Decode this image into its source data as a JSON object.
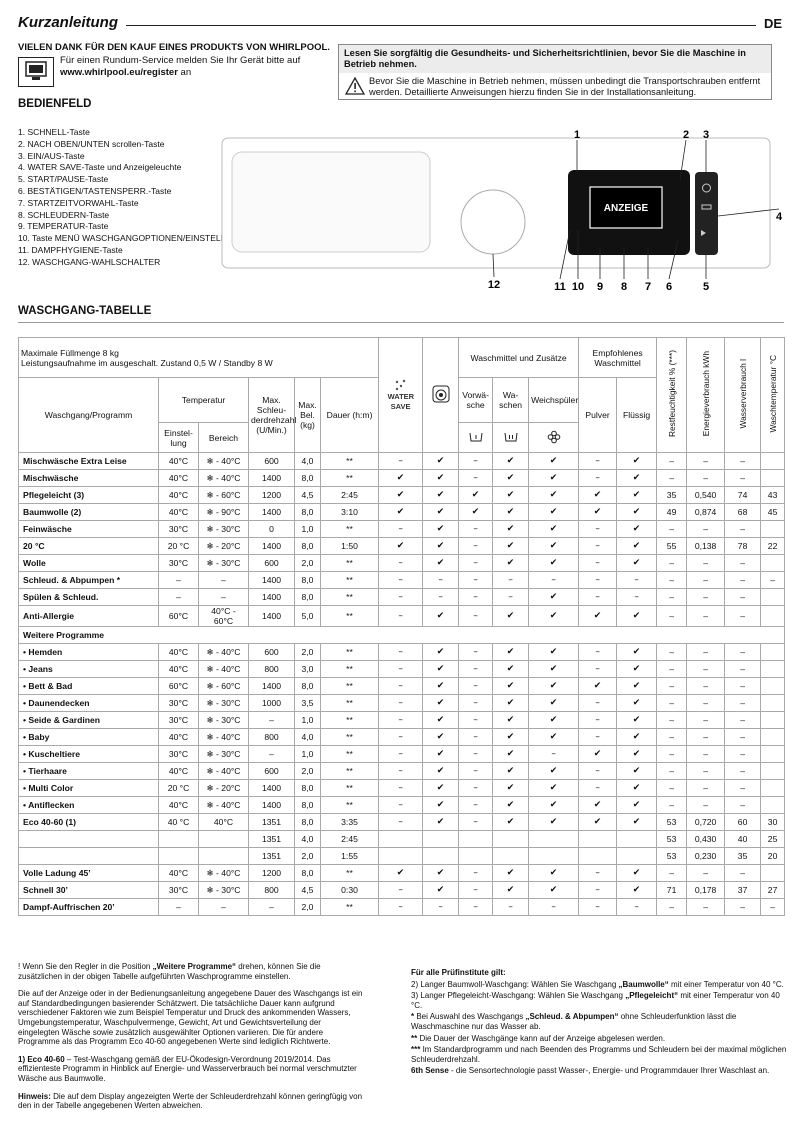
{
  "header": {
    "title": "Kurzanleitung",
    "lang": "DE"
  },
  "intro": {
    "thanks": "VIELEN DANK FÜR DEN KAUF EINES PRODUKTS VON WHIRLPOOL.",
    "register_text": "Für einen Rundum-Service melden Sie Ihr Gerät bitte auf",
    "register_url": "www.whirlpool.eu/register",
    "register_suffix": "an"
  },
  "safety": {
    "heading": "Lesen Sie sorgfältig die Gesundheits- und Sicherheitsrichtlinien, bevor Sie die Maschine in Betrieb nehmen.",
    "text": "Bevor Sie die Maschine in Betrieb nehmen, müssen unbedingt die Transportschrauben entfernt werden. Detaillierte Anweisungen hierzu finden Sie in der Installationsanleitung."
  },
  "controls": {
    "title": "BEDIENFELD",
    "items": [
      "1. SCHNELL-Taste",
      "2. NACH OBEN/UNTEN scrollen-Taste",
      "3. EIN/AUS-Taste",
      "4. WATER SAVE-Taste und Anzeigeleuchte",
      "5. START/PAUSE-Taste",
      "6. BESTÄTIGEN/TASTENSPERR.-Taste",
      "7. STARTZEITVORWAHL-Taste",
      "8. SCHLEUDERN-Taste",
      "9. TEMPERATUR-Taste",
      "10. Taste MENÜ WASCHGANGOPTIONEN/EINSTELLUNGEN",
      "11. DAMPFHYGIENE-Taste",
      "12. WASCHGANG-WAHLSCHALTER"
    ]
  },
  "panel": {
    "display": "ANZEIGE",
    "callouts": [
      "1",
      "2",
      "3",
      "4",
      "5",
      "6",
      "7",
      "8",
      "9",
      "10",
      "11",
      "12"
    ]
  },
  "table": {
    "title": "WASCHGANG-TABELLE",
    "header": {
      "max_load": "Maximale Füllmenge 8 kg",
      "power": "Leistungsaufnahme im ausgeschalt. Zustand 0,5 W / Standby 8 W",
      "program": "Waschgang/Programm",
      "temperature": "Temperatur",
      "setting": "Einstel-lung",
      "range": "Bereich",
      "spin": "Max. Schleu-derdrehzahl (U/Min.)",
      "load": "Max. Bel. (kg)",
      "duration": "Dauer (h:m)",
      "water_save": "WATER SAVE",
      "detergents": "Waschmittel und Zusätze",
      "prewash": "Vorwä-sche",
      "wash": "Wa-schen",
      "softener": "Weichspüler",
      "recommended": "Empfohlenes Waschmittel",
      "powder": "Pulver",
      "liquid": "Flüssig",
      "moisture": "Restfeuchtigkeit % (***)",
      "energy": "Energieverbrauch kWh",
      "water": "Wasserverbrauch l",
      "wash_temp": "Waschtemperatur °C"
    },
    "rows": [
      [
        "Mischwäsche Extra Leise",
        "40°C",
        "❄ - 40°C",
        "600",
        "4,0",
        "**",
        "–",
        "✔",
        "–",
        "✔",
        "✔",
        "–",
        "✔",
        "–",
        "–",
        "–",
        null
      ],
      [
        "Mischwäsche",
        "40°C",
        "❄ - 40°C",
        "1400",
        "8,0",
        "**",
        "✔",
        "✔",
        "–",
        "✔",
        "✔",
        "–",
        "✔",
        "–",
        "–",
        "–",
        null
      ],
      [
        "Pflegeleicht (3)",
        "40°C",
        "❄ - 60°C",
        "1200",
        "4,5",
        "2:45",
        "✔",
        "✔",
        "✔",
        "✔",
        "✔",
        "✔",
        "✔",
        "35",
        "0,540",
        "74",
        "43"
      ],
      [
        "Baumwolle (2)",
        "40°C",
        "❄ - 90°C",
        "1400",
        "8,0",
        "3:10",
        "✔",
        "✔",
        "✔",
        "✔",
        "✔",
        "✔",
        "✔",
        "49",
        "0,874",
        "68",
        "45"
      ],
      [
        "Feinwäsche",
        "30°C",
        "❄ - 30°C",
        "0",
        "1,0",
        "**",
        "–",
        "✔",
        "–",
        "✔",
        "✔",
        "–",
        "✔",
        "–",
        "–",
        "–",
        null
      ],
      [
        "20 °C",
        "20 °C",
        "❄ - 20°C",
        "1400",
        "8,0",
        "1:50",
        "✔",
        "✔",
        "–",
        "✔",
        "✔",
        "–",
        "✔",
        "55",
        "0,138",
        "78",
        "22"
      ],
      [
        "Wolle",
        "30°C",
        "❄ - 30°C",
        "600",
        "2,0",
        "**",
        "–",
        "✔",
        "–",
        "✔",
        "✔",
        "–",
        "✔",
        "–",
        "–",
        "–",
        null
      ],
      [
        "Schleud. & Abpumpen *",
        "–",
        "–",
        "1400",
        "8,0",
        "**",
        "–",
        "–",
        "–",
        "–",
        "–",
        "–",
        "–",
        "–",
        "–",
        "–",
        "–"
      ],
      [
        "Spülen & Schleud.",
        "–",
        "–",
        "1400",
        "8,0",
        "**",
        "–",
        "–",
        "–",
        "–",
        "✔",
        "–",
        "–",
        "–",
        "–",
        "–",
        null
      ],
      [
        "Anti-Allergie",
        "60°C",
        "40°C - 60°C",
        "1400",
        "5,0",
        "**",
        "–",
        "✔",
        "–",
        "✔",
        "✔",
        "✔",
        "✔",
        "–",
        "–",
        "–",
        null
      ],
      {
        "section": "Weitere Programme"
      },
      [
        "• Hemden",
        "40°C",
        "❄ - 40°C",
        "600",
        "2,0",
        "**",
        "–",
        "✔",
        "–",
        "✔",
        "✔",
        "–",
        "✔",
        "–",
        "–",
        "–",
        null
      ],
      [
        "• Jeans",
        "40°C",
        "❄ - 40°C",
        "800",
        "3,0",
        "**",
        "–",
        "✔",
        "–",
        "✔",
        "✔",
        "–",
        "✔",
        "–",
        "–",
        "–",
        null
      ],
      [
        "• Bett & Bad",
        "60°C",
        "❄ - 60°C",
        "1400",
        "8,0",
        "**",
        "–",
        "✔",
        "–",
        "✔",
        "✔",
        "✔",
        "✔",
        "–",
        "–",
        "–",
        null
      ],
      [
        "• Daunendecken",
        "30°C",
        "❄ - 30°C",
        "1000",
        "3,5",
        "**",
        "–",
        "✔",
        "–",
        "✔",
        "✔",
        "–",
        "✔",
        "–",
        "–",
        "–",
        null
      ],
      [
        "• Seide & Gardinen",
        "30°C",
        "❄ - 30°C",
        "–",
        "1,0",
        "**",
        "–",
        "✔",
        "–",
        "✔",
        "✔",
        "–",
        "✔",
        "–",
        "–",
        "–",
        null
      ],
      [
        "• Baby",
        "40°C",
        "❄ - 40°C",
        "800",
        "4,0",
        "**",
        "–",
        "✔",
        "–",
        "✔",
        "✔",
        "–",
        "✔",
        "–",
        "–",
        "–",
        null
      ],
      [
        "• Kuscheltiere",
        "30°C",
        "❄ - 30°C",
        "–",
        "1,0",
        "**",
        "–",
        "✔",
        "–",
        "✔",
        "–",
        "✔",
        "✔",
        "–",
        "–",
        "–",
        null
      ],
      [
        "• Tierhaare",
        "40°C",
        "❄ - 40°C",
        "600",
        "2,0",
        "**",
        "–",
        "✔",
        "–",
        "✔",
        "✔",
        "–",
        "✔",
        "–",
        "–",
        "–",
        null
      ],
      [
        "• Multi Color",
        "20 °C",
        "❄ - 20°C",
        "1400",
        "8,0",
        "**",
        "–",
        "✔",
        "–",
        "✔",
        "✔",
        "–",
        "✔",
        "–",
        "–",
        "–",
        null
      ],
      [
        "• Antiflecken",
        "40°C",
        "❄ - 40°C",
        "1400",
        "8,0",
        "**",
        "–",
        "✔",
        "–",
        "✔",
        "✔",
        "✔",
        "✔",
        "–",
        "–",
        "–",
        null
      ],
      [
        "Eco 40-60 (1)",
        "40 °C",
        "40°C",
        "1351",
        "8,0",
        "3:35",
        "–",
        "✔",
        "–",
        "✔",
        "✔",
        "✔",
        "✔",
        "53",
        "0,720",
        "60",
        "30"
      ],
      [
        null,
        null,
        null,
        "1351",
        "4,0",
        "2:45",
        null,
        null,
        null,
        null,
        null,
        null,
        null,
        "53",
        "0,430",
        "40",
        "25"
      ],
      [
        null,
        null,
        null,
        "1351",
        "2,0",
        "1:55",
        null,
        null,
        null,
        null,
        null,
        null,
        null,
        "53",
        "0,230",
        "35",
        "20"
      ],
      [
        "Volle Ladung 45’",
        "40°C",
        "❄ - 40°C",
        "1200",
        "8,0",
        "**",
        "✔",
        "✔",
        "–",
        "✔",
        "✔",
        "–",
        "✔",
        "–",
        "–",
        "–",
        null
      ],
      [
        "Schnell 30’",
        "30°C",
        "❄ - 30°C",
        "800",
        "4,5",
        "0:30",
        "–",
        "✔",
        "–",
        "✔",
        "✔",
        "–",
        "✔",
        "71",
        "0,178",
        "37",
        "27"
      ],
      [
        "Dampf-Auffrischen 20’",
        "–",
        "–",
        "–",
        "2,0",
        "**",
        "–",
        "–",
        "–",
        "–",
        "–",
        "–",
        "–",
        "–",
        "–",
        "–",
        "–"
      ]
    ]
  },
  "footnotes": {
    "left": [
      [
        "! Wenn Sie den Regler in die Position ",
        {
          "b": "„Weitere Programme“"
        },
        " drehen, können Sie die zusätzlichen in der obigen Tabelle aufgeführten Waschprogramme einstellen."
      ],
      [
        "Die auf der Anzeige oder in der Bedienungsanleitung angegebene Dauer des Waschgangs ist ein auf Standardbedingungen basierender Schätzwert. Die tatsächliche Dauer kann aufgrund verschiedener Faktoren wie zum Beispiel Temperatur und Druck des ankommenden Wassers, Umgebungstemperatur, Waschpulvermenge, Gewicht, Art und Gewichtsverteilung der eingelegten Wäsche sowie zusätzlich ausgewählter Optionen variieren. Die für andere Programme als das Programm Eco 40-60 angegebenen Werte sind lediglich Richtwerte."
      ],
      [
        {
          "b": "1) Eco 40-60"
        },
        " – Test-Waschgang gemäß der EU-Ökodesign-Verordnung 2019/2014. Das effizienteste Programm in Hinblick auf Energie- und Wasserverbrauch bei normal verschmutzter Wäsche aus Baumwolle."
      ],
      [
        {
          "b": "Hinweis:"
        },
        " Die auf dem Display angezeigten Werte der Schleuderdrehzahl können geringfügig von den in der Tabelle angegebenen Werten abweichen."
      ]
    ],
    "right": [
      [
        {
          "b": "Für alle Prüfinstitute gilt:"
        }
      ],
      [
        "2) Langer Baumwoll-Waschgang: Wählen Sie Waschgang ",
        {
          "b": "„Baumwolle“"
        },
        " mit einer Temperatur von 40 °C."
      ],
      [
        "3) Langer Pflegeleicht-Waschgang: Wählen Sie Waschgang ",
        {
          "b": "„Pflegeleicht“"
        },
        " mit einer Temperatur von 40 °C."
      ],
      [
        {
          "b": "*"
        },
        " Bei Auswahl des Waschgangs ",
        {
          "b": "„Schleud. & Abpumpen“"
        },
        " ohne Schleuderfunktion lässt die Waschmaschine nur das Wasser ab."
      ],
      [
        {
          "b": "**"
        },
        " Die Dauer der Waschgänge kann auf der Anzeige abgelesen werden."
      ],
      [
        {
          "b": "***"
        },
        " Im Standardprogramm und nach Beenden des Programms und Schleudern bei der maximal möglichen Schleuderdrehzahl."
      ],
      [
        {
          "b": "6th Sense"
        },
        " - die Sensortechnologie passt Wasser-, Energie- und Programmdauer Ihrer Waschlast an."
      ]
    ]
  }
}
